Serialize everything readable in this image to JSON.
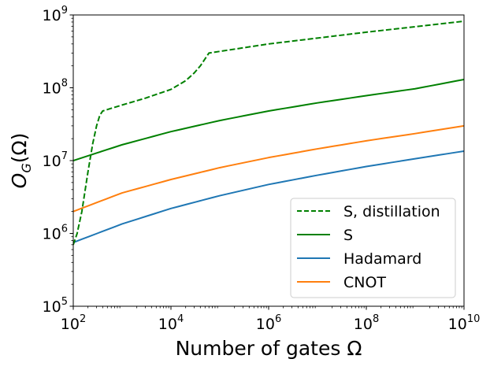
{
  "chart_data": {
    "type": "line",
    "xscale": "log",
    "yscale": "log",
    "xlim": [
      100,
      10000000000
    ],
    "ylim": [
      100000,
      1000000000
    ],
    "xlabel": "Number of gates Ω",
    "ylabel": "O_G(Ω)",
    "ylabel_parts": {
      "main": "O",
      "sub": "G",
      "arg": "(Ω)"
    },
    "x_ticks": [
      {
        "base": "10",
        "exp": "2"
      },
      {
        "base": "10",
        "exp": "4"
      },
      {
        "base": "10",
        "exp": "6"
      },
      {
        "base": "10",
        "exp": "8"
      },
      {
        "base": "10",
        "exp": "10"
      }
    ],
    "y_ticks": [
      {
        "base": "10",
        "exp": "5"
      },
      {
        "base": "10",
        "exp": "6"
      },
      {
        "base": "10",
        "exp": "7"
      },
      {
        "base": "10",
        "exp": "8"
      },
      {
        "base": "10",
        "exp": "9"
      }
    ],
    "legend_position": "lower-right",
    "series": [
      {
        "name": "S, distillation",
        "color": "#008000",
        "dash": "dashed",
        "x": [
          100,
          120,
          150,
          200,
          250,
          300,
          350,
          400,
          1000,
          3000,
          10000,
          20000,
          30000,
          40000,
          50000,
          60000,
          1000000,
          100000000,
          10000000000
        ],
        "y": [
          700000,
          1000000,
          2000000,
          7000000,
          17000000,
          30000000,
          42000000,
          48000000,
          58000000,
          72000000,
          95000000,
          125000000,
          160000000,
          200000000,
          250000000,
          300000000,
          400000000,
          580000000,
          820000000
        ]
      },
      {
        "name": "S",
        "color": "#008000",
        "dash": "solid",
        "x": [
          100,
          1000,
          10000,
          100000,
          1000000,
          10000000,
          100000000,
          1000000000,
          10000000000
        ],
        "y": [
          10000000,
          16500000,
          25000000,
          35500000,
          48000000,
          62000000,
          78000000,
          97000000,
          130000000
        ]
      },
      {
        "name": "Hadamard",
        "color": "#1f77b4",
        "dash": "solid",
        "x": [
          100,
          1000,
          10000,
          100000,
          1000000,
          10000000,
          100000000,
          1000000000,
          10000000000
        ],
        "y": [
          750000,
          1350000,
          2200000,
          3300000,
          4700000,
          6300000,
          8300000,
          10600000,
          13500000
        ]
      },
      {
        "name": "CNOT",
        "color": "#ff7f0e",
        "dash": "solid",
        "x": [
          100,
          1000,
          10000,
          100000,
          1000000,
          10000000,
          100000000,
          1000000000,
          10000000000
        ],
        "y": [
          2000000,
          3600000,
          5500000,
          8000000,
          11000000,
          14500000,
          18700000,
          23500000,
          30000000
        ]
      }
    ]
  }
}
